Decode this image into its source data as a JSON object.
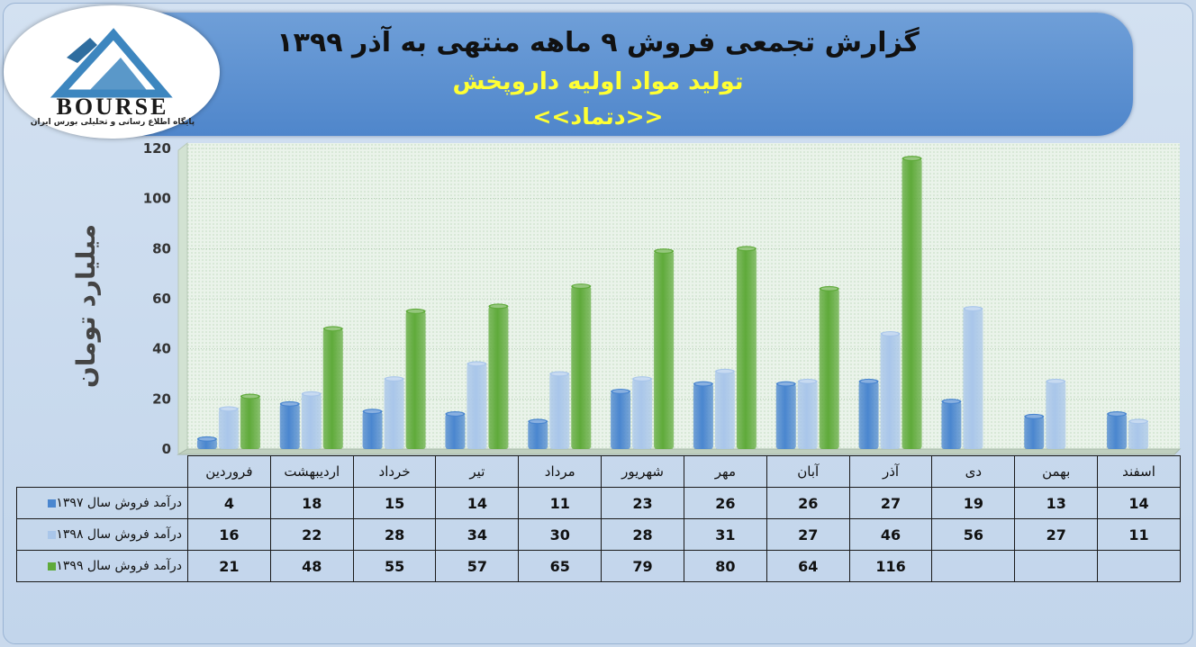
{
  "header": {
    "title": "گزارش تجمعی فروش ۹ ماهه منتهی به آذر ۱۳۹۹",
    "subtitle": "تولید مواد اولیه داروپخش",
    "symbol": "<<دتماد>>"
  },
  "logo": {
    "brand": "BOURSE",
    "tagline": "پایگاه اطلاع رسانی و تحلیلی بورس ایران"
  },
  "colors": {
    "s1397": "#4a86cf",
    "s1398": "#a9c6ea",
    "s1399": "#5faa3a"
  },
  "chart_data": {
    "type": "bar",
    "ylabel": "میلیارد تومان",
    "ylim": [
      0,
      120
    ],
    "yticks": [
      "0",
      "20",
      "40",
      "60",
      "80",
      "100",
      "120"
    ],
    "grid": true,
    "categories": [
      "فروردین",
      "اردیبهشت",
      "خرداد",
      "تیر",
      "مرداد",
      "شهریور",
      "مهر",
      "آبان",
      "آذر",
      "دی",
      "بهمن",
      "اسفند"
    ],
    "series": [
      {
        "name": "درآمد فروش سال ۱۳۹۷",
        "values": [
          4,
          18,
          15,
          14,
          11,
          23,
          26,
          26,
          27,
          19,
          13,
          14
        ]
      },
      {
        "name": "درآمد فروش سال ۱۳۹۸",
        "values": [
          16,
          22,
          28,
          34,
          30,
          28,
          31,
          27,
          46,
          56,
          27,
          11
        ]
      },
      {
        "name": "درآمد فروش سال ۱۳۹۹",
        "values": [
          21,
          48,
          55,
          57,
          65,
          79,
          80,
          64,
          116,
          null,
          null,
          null
        ]
      }
    ]
  }
}
